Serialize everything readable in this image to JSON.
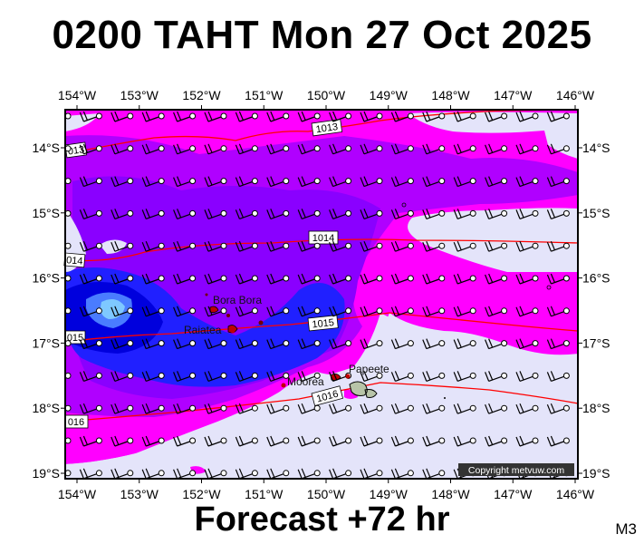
{
  "title": "0200 TAHT Mon 27 Oct 2025",
  "footer": "Forecast +72 hr",
  "corner_code": "M3",
  "copyright": "Copyright metvuw.com",
  "axes": {
    "lon_labels": [
      "154°W",
      "153°W",
      "152°W",
      "151°W",
      "150°W",
      "149°W",
      "148°W",
      "147°W",
      "146°W"
    ],
    "lat_labels": [
      "14°S",
      "15°S",
      "16°S",
      "17°S",
      "18°S",
      "19°S"
    ]
  },
  "isobars": [
    {
      "label": "1013"
    },
    {
      "label": "013"
    },
    {
      "label": "1014"
    },
    {
      "label": "014"
    },
    {
      "label": "1015"
    },
    {
      "label": "015"
    },
    {
      "label": "1016"
    },
    {
      "label": "016"
    }
  ],
  "places": [
    {
      "label": "Bora Bora"
    },
    {
      "label": "Raiatea"
    },
    {
      "label": "Moorea"
    },
    {
      "label": "Papeete"
    }
  ],
  "colors": {
    "rain_light": "#e4e4fa",
    "rain_magenta": "#ff00ff",
    "rain_violet": "#b000ff",
    "rain_purple": "#8a00ff",
    "rain_blue": "#2020ff",
    "rain_deep": "#0000dd",
    "rain_cyan": "#7ec8ff",
    "isobar": "#ff0000"
  }
}
